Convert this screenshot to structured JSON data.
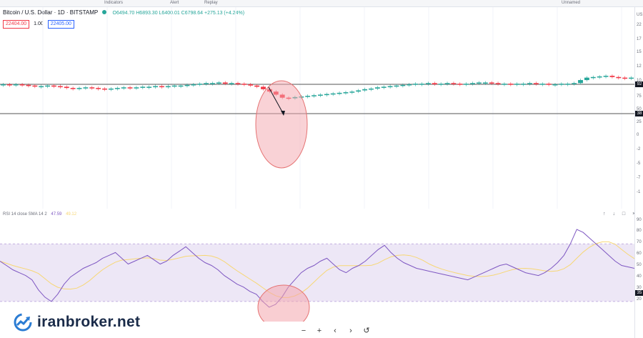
{
  "toolbar": {
    "items": [
      "Indicators",
      "Alert",
      "Replay",
      "Unnamed"
    ]
  },
  "chart": {
    "symbol": "Bitcoin / U.S. Dollar · 1D · BITSTAMP",
    "ohlc": "O6494.70 H6893.30 L6400.01 C6798.64 +275.13 (+4.24%)",
    "sell_price": "22404.00",
    "spread": "1.00",
    "buy_price": "22405.00"
  },
  "rsi": {
    "label": "RSI 14 close SMA 14 2",
    "value1": "47.59",
    "value2": "49.12"
  },
  "price_axis": {
    "labels": [
      "US",
      "22",
      "17",
      "15",
      "12",
      "10",
      "75",
      "50",
      "25",
      "0",
      "-2",
      "-5",
      "-7",
      "-1"
    ],
    "tags": [
      "92",
      "38"
    ]
  },
  "rsi_axis": {
    "labels": [
      "90",
      "80",
      "70",
      "60",
      "50",
      "40",
      "30",
      "20"
    ],
    "tag": "35"
  },
  "watermark": {
    "text": "iranbroker.net"
  },
  "nav": {
    "buttons": [
      "−",
      "+",
      "‹",
      "›",
      "↺"
    ]
  },
  "colors": {
    "up": "#26a69a",
    "down": "#f23645",
    "rsi_line": "#7e57c2",
    "rsi_sma": "#f7d774",
    "rsi_band": "#ede7f6",
    "highlight": "#f4a6ad",
    "brand": "#2b7cd3"
  },
  "chart_data": {
    "type": "line",
    "main_series": {
      "name": "BTCUSD",
      "closes": [
        92,
        91,
        92,
        91,
        90,
        89,
        89,
        90,
        89,
        88,
        86,
        85,
        86,
        87,
        86,
        85,
        84,
        85,
        86,
        87,
        86,
        87,
        88,
        88,
        89,
        88,
        89,
        90,
        90,
        91,
        92,
        93,
        94,
        94,
        95,
        93,
        94,
        93,
        92,
        90,
        88,
        84,
        80,
        75,
        70,
        69,
        71,
        72,
        73,
        74,
        75,
        76,
        77,
        78,
        79,
        80,
        82,
        84,
        85,
        87,
        88,
        89,
        90,
        91,
        92,
        93,
        93,
        94,
        92,
        93,
        94,
        93,
        92,
        93,
        94,
        95,
        95,
        94,
        93,
        93,
        92,
        93,
        93,
        94,
        93,
        93,
        92,
        92,
        93,
        93,
        94,
        99,
        103,
        104,
        105,
        106,
        104,
        103,
        102,
        103
      ]
    },
    "rsi_series": {
      "name": "RSI",
      "values": [
        58,
        55,
        52,
        50,
        48,
        45,
        38,
        33,
        30,
        35,
        42,
        47,
        50,
        53,
        55,
        57,
        60,
        62,
        64,
        60,
        56,
        58,
        60,
        62,
        59,
        56,
        58,
        62,
        65,
        68,
        64,
        60,
        57,
        55,
        52,
        48,
        45,
        42,
        40,
        37,
        35,
        30,
        26,
        28,
        33,
        40,
        45,
        50,
        53,
        55,
        58,
        60,
        56,
        52,
        50,
        53,
        55,
        58,
        62,
        66,
        69,
        64,
        60,
        57,
        55,
        53,
        52,
        51,
        50,
        49,
        48,
        47,
        46,
        45,
        47,
        49,
        51,
        53,
        55,
        56,
        54,
        52,
        50,
        49,
        48,
        50,
        53,
        57,
        62,
        70,
        80,
        78,
        74,
        70,
        66,
        62,
        58,
        55,
        54,
        53
      ]
    },
    "rsi_ylim": [
      20,
      90
    ],
    "rsi_band": [
      30,
      70
    ]
  }
}
